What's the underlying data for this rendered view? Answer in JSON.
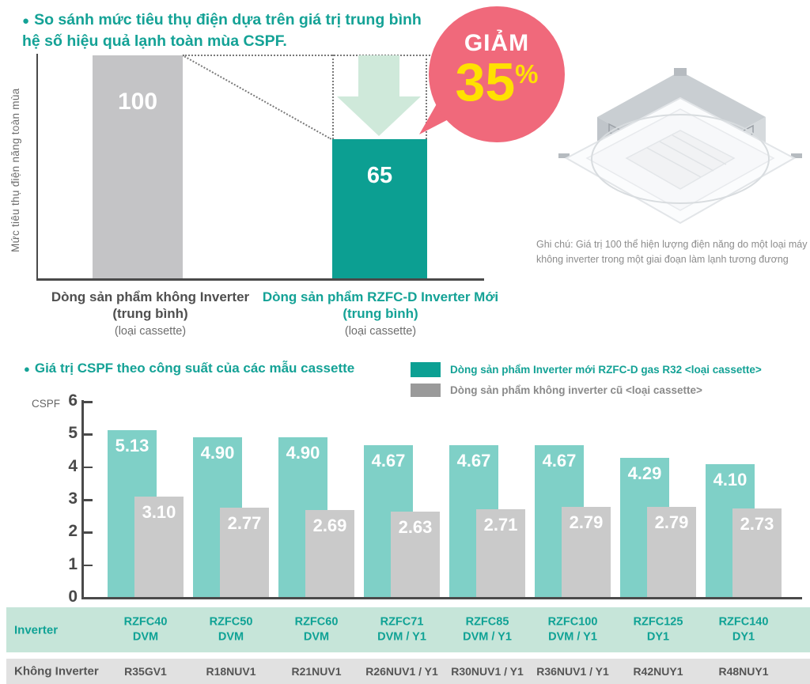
{
  "colors": {
    "teal_dark": "#0c9f92",
    "teal_text": "#14a296",
    "teal_light_bar": "#7fd0c7",
    "gray_bar_top": "#c4c4c6",
    "gray_bar_bottom": "#cacaca",
    "legend_gray": "#9a9a9a",
    "badge_pink": "#f0697b",
    "badge_yellow": "#ffe100",
    "arrow_green": "#cfe9da",
    "table_teal_bg": "#c6e5d9",
    "table_gray_bg": "#e1e1e1"
  },
  "section1": {
    "title": "So sánh mức tiêu thụ điện dựa trên giá trị trung bình hệ số hiệu quả lạnh toàn mùa CSPF.",
    "y_axis_label": "Mức tiêu thụ điện năng toàn mùa",
    "bar_old_value": "100",
    "bar_new_value": "65",
    "badge": {
      "line1": "GIẢM",
      "value": "35",
      "percent": "%"
    },
    "label_old": {
      "l1": "Dòng sản phẩm không Inverter",
      "l2": "(trung bình)",
      "l3": "(loại cassette)"
    },
    "label_new": {
      "l1": "Dòng sản phẩm RZFC-D Inverter Mới",
      "l2": "(trung bình)",
      "l3": "(loại cassette)"
    },
    "note": "Ghi chú: Giá trị 100 thể hiện lượng điện năng do một loại máy không inverter trong một giai đoạn làm lạnh tương đương"
  },
  "section2": {
    "title": "Giá trị CSPF theo công suất của các mẫu cassette",
    "y_axis_label": "CSPF",
    "legend": [
      {
        "label": "Dòng sản phẩm Inverter mới RZFC-D gas R32 <loại cassette>",
        "color": "#0ca093",
        "text_color": "#14a296"
      },
      {
        "label": "Dòng sản phẩm không inverter cũ <loại cassette>",
        "color": "#9a9a9a",
        "text_color": "#8a8a8a"
      }
    ]
  },
  "chart_data": [
    {
      "type": "bar",
      "title": "So sánh mức tiêu thụ điện dựa trên giá trị trung bình hệ số hiệu quả lạnh toàn mùa CSPF.",
      "categories": [
        "Dòng sản phẩm không Inverter (trung bình) (loại cassette)",
        "Dòng sản phẩm RZFC-D Inverter Mới (trung bình) (loại cassette)"
      ],
      "values": [
        100,
        65
      ],
      "ylabel": "Mức tiêu thụ điện năng toàn mùa",
      "annotation": "GIẢM 35%",
      "legend_position": "none",
      "grid": false
    },
    {
      "type": "bar",
      "title": "Giá trị CSPF theo công suất của các mẫu cassette",
      "ylabel": "CSPF",
      "ylim": [
        0,
        6
      ],
      "yticks": [
        6,
        5,
        4,
        3,
        2,
        1,
        0
      ],
      "categories": [
        "RZFC40 DVM",
        "RZFC50 DVM",
        "RZFC60 DVM",
        "RZFC71 DVM / Y1",
        "RZFC85 DVM / Y1",
        "RZFC100 DVM / Y1",
        "RZFC125 DY1",
        "RZFC140 DY1"
      ],
      "series": [
        {
          "name": "Dòng sản phẩm Inverter mới RZFC-D gas R32 <loại cassette>",
          "values": [
            5.13,
            4.9,
            4.9,
            4.67,
            4.67,
            4.67,
            4.29,
            4.1
          ]
        },
        {
          "name": "Dòng sản phẩm không inverter cũ <loại cassette>",
          "values": [
            3.1,
            2.77,
            2.69,
            2.63,
            2.71,
            2.79,
            2.79,
            2.73
          ]
        }
      ],
      "legend_position": "top-right",
      "grid": false
    }
  ],
  "table": {
    "row1_label": "Inverter",
    "row2_label": "Không Inverter",
    "columns": [
      {
        "inverter_l1": "RZFC40",
        "inverter_l2": "DVM",
        "non_inverter": "R35GV1"
      },
      {
        "inverter_l1": "RZFC50",
        "inverter_l2": "DVM",
        "non_inverter": "R18NUV1"
      },
      {
        "inverter_l1": "RZFC60",
        "inverter_l2": "DVM",
        "non_inverter": "R21NUV1"
      },
      {
        "inverter_l1": "RZFC71",
        "inverter_l2": "DVM / Y1",
        "non_inverter": "R26NUV1 / Y1"
      },
      {
        "inverter_l1": "RZFC85",
        "inverter_l2": "DVM / Y1",
        "non_inverter": "R30NUV1 / Y1"
      },
      {
        "inverter_l1": "RZFC100",
        "inverter_l2": "DVM / Y1",
        "non_inverter": "R36NUV1 / Y1"
      },
      {
        "inverter_l1": "RZFC125",
        "inverter_l2": "DY1",
        "non_inverter": "R42NUY1"
      },
      {
        "inverter_l1": "RZFC140",
        "inverter_l2": "DY1",
        "non_inverter": "R48NUY1"
      }
    ]
  }
}
